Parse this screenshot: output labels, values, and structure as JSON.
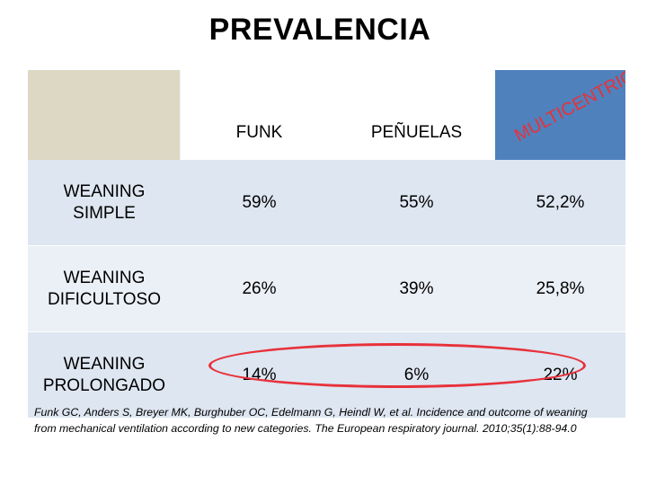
{
  "title": "PREVALENCIA",
  "table": {
    "columns": [
      "",
      "FUNK",
      "PEÑUELAS",
      "MULTICENTRICO"
    ],
    "rows": [
      {
        "label_line1": "WEANING",
        "label_line2": "SIMPLE",
        "values": [
          "59%",
          "55%",
          "52,2%"
        ]
      },
      {
        "label_line1": "WEANING",
        "label_line2": "DIFICULTOSO",
        "values": [
          "26%",
          "39%",
          "25,8%"
        ]
      },
      {
        "label_line1": "WEANING",
        "label_line2": "PROLONGADO",
        "values": [
          "14%",
          "6%",
          "22%"
        ]
      }
    ]
  },
  "colors": {
    "header_left": "#ddd8c4",
    "header_right": "#4f81bd",
    "row_dark": "#dde6f1",
    "row_light": "#ebeff6",
    "highlight_oval": "#e8313a",
    "diagonal_text": "#e8313a"
  },
  "citation": {
    "line1": "Funk GC, Anders S, Breyer MK, Burghuber OC, Edelmann G, Heindl W, et al. Incidence and outcome of weaning",
    "line2": "from mechanical ventilation according to new categories. The European respiratory journal. 2010;35(1):88-94.0"
  }
}
